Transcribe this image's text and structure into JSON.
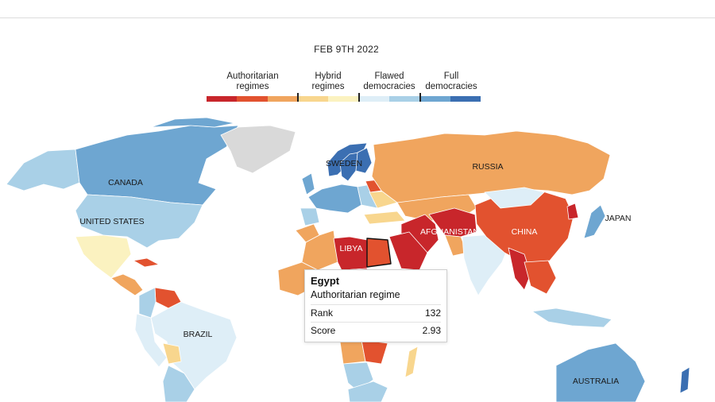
{
  "date": "FEB 9TH 2022",
  "legend": {
    "categories": [
      {
        "line1": "Authoritarian",
        "line2": "regimes"
      },
      {
        "line1": "Hybrid",
        "line2": "regimes"
      },
      {
        "line1": "Flawed",
        "line2": "democracies"
      },
      {
        "line1": "Full",
        "line2": "democracies"
      }
    ],
    "colors": [
      "#c8262b",
      "#e2522f",
      "#f0a55e",
      "#f8d68e",
      "#fbf2c0",
      "#deeef7",
      "#a9d0e7",
      "#6ea6d1",
      "#3b6fb2"
    ]
  },
  "labels": {
    "canada": "CANADA",
    "united_states": "UNITED STATES",
    "brazil": "BRAZIL",
    "sweden": "SWEDEN",
    "russia": "RUSSIA",
    "libya": "LIBYA",
    "afghanistan": "AFGHANISTAN",
    "china": "CHINA",
    "japan": "JAPAN",
    "australia": "AUSTRALIA"
  },
  "tooltip": {
    "country": "Egypt",
    "regime": "Authoritarian regime",
    "rank_label": "Rank",
    "rank_value": "132",
    "score_label": "Score",
    "score_value": "2.93"
  },
  "colors": {
    "no_data": "#d9d9d9",
    "border": "#ffffff",
    "highlight_border": "#111111"
  }
}
